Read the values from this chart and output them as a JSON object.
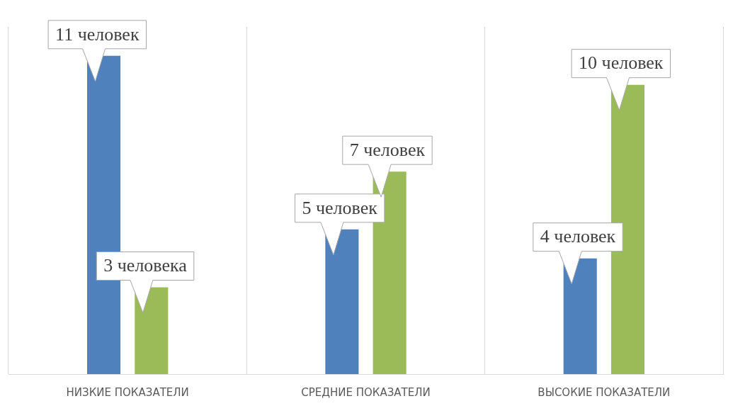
{
  "chart_data": {
    "type": "bar",
    "categories": [
      "НИЗКИЕ ПОКАЗАТЕЛИ",
      "СРЕДНИЕ ПОКАЗАТЕЛИ",
      "ВЫСОКИЕ ПОКАЗАТЕЛИ"
    ],
    "series": [
      {
        "color": "#4f81bd",
        "values": [
          11,
          5,
          4
        ],
        "value_labels": [
          "11 человек",
          "5 человек",
          "4 человек"
        ]
      },
      {
        "color": "#9bbb59",
        "values": [
          3,
          7,
          10
        ],
        "value_labels": [
          "3 человека",
          "7 человек",
          "10 человек"
        ]
      }
    ],
    "grid": "x",
    "legend": false
  }
}
